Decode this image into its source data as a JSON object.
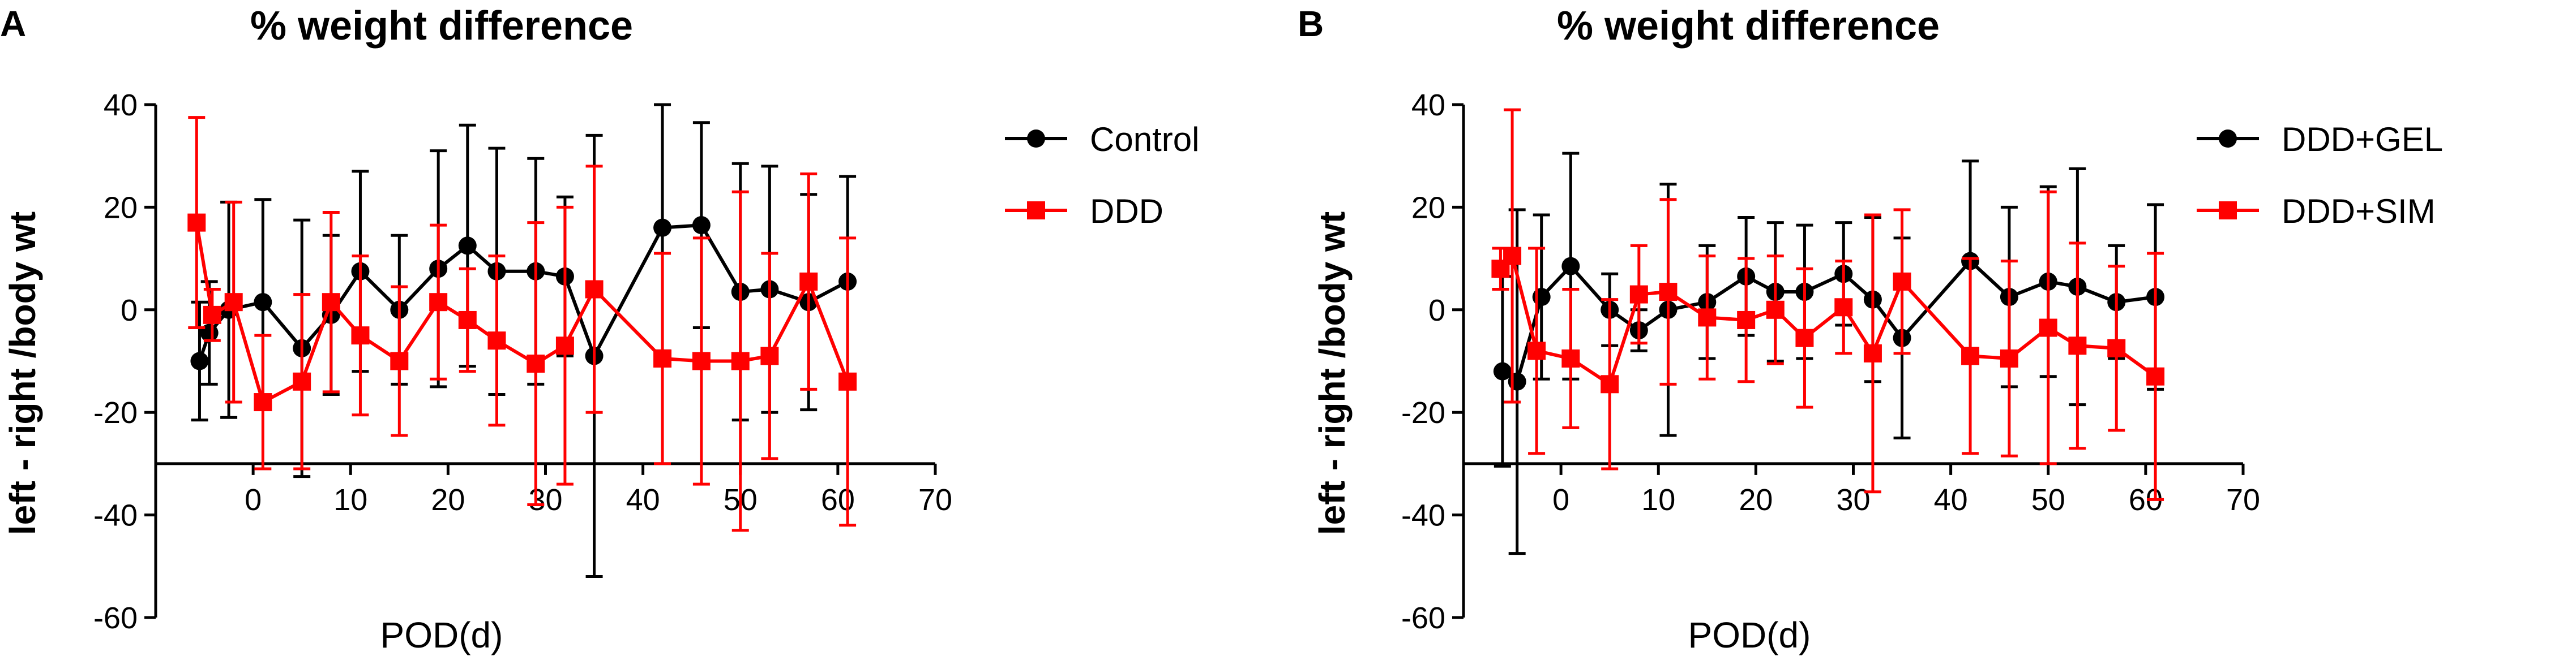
{
  "chart_data": [
    {
      "panel": "A",
      "type": "line",
      "title": "% weight difference",
      "xlabel": "POD(d)",
      "ylabel": "left - right /body wt",
      "xlim": [
        -10,
        70
      ],
      "ylim": [
        -60,
        40
      ],
      "x_axis_crosses_y": -30,
      "xticks": [
        0,
        10,
        20,
        30,
        40,
        50,
        60,
        70
      ],
      "yticks": [
        -60,
        -40,
        -20,
        0,
        20,
        40
      ],
      "legend_position": "right",
      "series": [
        {
          "name": "Control",
          "color": "#000000",
          "marker": "circle",
          "x": [
            -5.5,
            -4.5,
            -2.5,
            1,
            5,
            8,
            11,
            15,
            19,
            22,
            25,
            29,
            32,
            35,
            42,
            46,
            50,
            53,
            57,
            61
          ],
          "y": [
            -10,
            -4.5,
            0,
            1.5,
            -7.5,
            -1,
            7.5,
            0,
            8,
            12.5,
            7.5,
            7.5,
            6.5,
            -9,
            16,
            16.5,
            3.5,
            4,
            1.5,
            5.5
          ],
          "err": [
            11.5,
            10,
            21,
            20,
            25,
            15.5,
            19.5,
            14.5,
            23,
            23.5,
            24,
            22,
            15.5,
            43,
            24,
            20,
            25,
            24,
            21,
            20.5
          ]
        },
        {
          "name": "DDD",
          "color": "#ff0000",
          "marker": "square",
          "x": [
            -5.8,
            -4.2,
            -2,
            1,
            5,
            8,
            11,
            15,
            19,
            22,
            25,
            29,
            32,
            35,
            42,
            46,
            50,
            53,
            57,
            61
          ],
          "y": [
            17,
            -1,
            1.5,
            -18,
            -14,
            1.5,
            -5,
            -10,
            1.5,
            -2,
            -6,
            -10.5,
            -7,
            4,
            -9.5,
            -10,
            -10,
            -9,
            5.5,
            -14
          ],
          "err": [
            20.5,
            5,
            19.5,
            13,
            17,
            17.5,
            15.5,
            14.5,
            15,
            10,
            16.5,
            27.5,
            27,
            24,
            20.5,
            24,
            33,
            20,
            21,
            28
          ]
        }
      ]
    },
    {
      "panel": "B",
      "type": "line",
      "title": "% weight difference",
      "xlabel": "POD(d)",
      "ylabel": "left - right /body wt",
      "xlim": [
        -10,
        70
      ],
      "ylim": [
        -60,
        40
      ],
      "x_axis_crosses_y": -30,
      "xticks": [
        0,
        10,
        20,
        30,
        40,
        50,
        60,
        70
      ],
      "yticks": [
        -60,
        -40,
        -20,
        0,
        20,
        40
      ],
      "legend_position": "right",
      "series": [
        {
          "name": "DDD+GEL",
          "color": "#000000",
          "marker": "circle",
          "x": [
            -6,
            -4.5,
            -2,
            1,
            5,
            8,
            11,
            15,
            19,
            22,
            25,
            29,
            32,
            35,
            42,
            46,
            50,
            53,
            57,
            61
          ],
          "y": [
            -12,
            -14,
            2.5,
            8.5,
            0,
            -4,
            0,
            1.5,
            6.5,
            3.5,
            3.5,
            7,
            2,
            -5.5,
            9.5,
            2.5,
            5.5,
            4.5,
            1.5,
            2.5
          ],
          "err": [
            18.5,
            33.5,
            16,
            22,
            7,
            4,
            24.5,
            11,
            11.5,
            13.5,
            13,
            10,
            16,
            19.5,
            19.5,
            17.5,
            18.5,
            23,
            11,
            18
          ]
        },
        {
          "name": "DDD+SIM",
          "color": "#ff0000",
          "marker": "square",
          "x": [
            -6.2,
            -5,
            -2.5,
            1,
            5,
            8,
            11,
            15,
            19,
            22,
            25,
            29,
            32,
            35,
            42,
            46,
            50,
            53,
            57,
            61
          ],
          "y": [
            8,
            10.5,
            -8,
            -9.5,
            -14.5,
            3,
            3.5,
            -1.5,
            -2,
            0,
            -5.5,
            0.5,
            -8.5,
            5.5,
            -9,
            -9.5,
            -3.5,
            -7,
            -7.5,
            -13
          ],
          "err": [
            4,
            28.5,
            20,
            13.5,
            16.5,
            9.5,
            18,
            12,
            12,
            10.5,
            13.5,
            9,
            27,
            14,
            19,
            19,
            26.5,
            20,
            16,
            24
          ]
        }
      ]
    }
  ]
}
